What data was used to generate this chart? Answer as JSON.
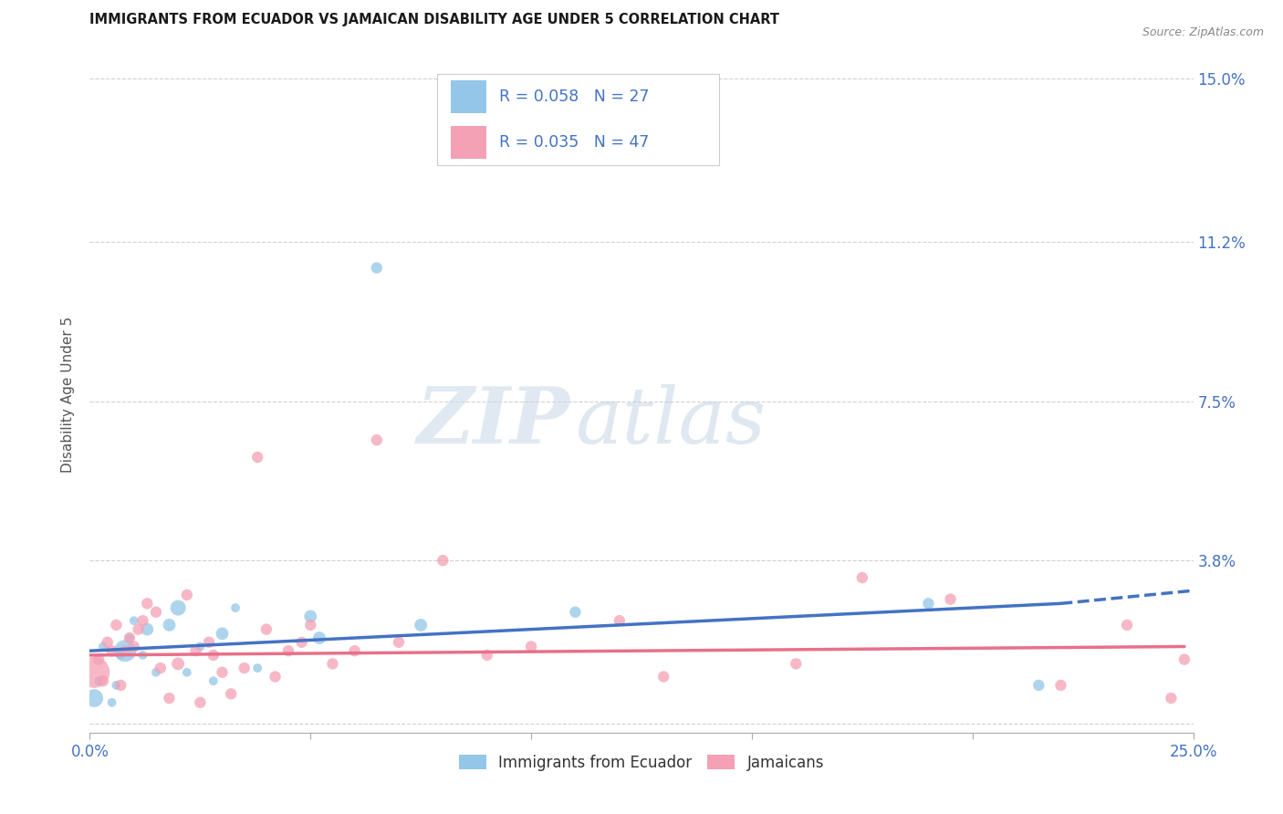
{
  "title": "IMMIGRANTS FROM ECUADOR VS JAMAICAN DISABILITY AGE UNDER 5 CORRELATION CHART",
  "source": "Source: ZipAtlas.com",
  "ylabel": "Disability Age Under 5",
  "xlim": [
    0.0,
    0.25
  ],
  "ylim": [
    -0.002,
    0.155
  ],
  "yticks": [
    0.0,
    0.038,
    0.075,
    0.112,
    0.15
  ],
  "ytick_labels": [
    "",
    "3.8%",
    "7.5%",
    "11.2%",
    "15.0%"
  ],
  "xticks": [
    0.0,
    0.05,
    0.1,
    0.15,
    0.2,
    0.25
  ],
  "xtick_labels": [
    "0.0%",
    "",
    "",
    "",
    "",
    "25.0%"
  ],
  "watermark_zip": "ZIP",
  "watermark_atlas": "atlas",
  "legend_ecuador": "R = 0.058   N = 27",
  "legend_jamaicans": "R = 0.035   N = 47",
  "legend_label_ecuador": "Immigrants from Ecuador",
  "legend_label_jamaicans": "Jamaicans",
  "color_ecuador": "#93C6E8",
  "color_jamaicans": "#F4A0B5",
  "trendline_ecuador_color": "#4472C4",
  "trendline_jamaicans_color": "#E8708A",
  "background_color": "#FFFFFF",
  "ecuador_x": [
    0.001,
    0.002,
    0.003,
    0.005,
    0.006,
    0.007,
    0.008,
    0.009,
    0.01,
    0.012,
    0.013,
    0.015,
    0.018,
    0.02,
    0.022,
    0.025,
    0.028,
    0.03,
    0.033,
    0.038,
    0.05,
    0.052,
    0.065,
    0.075,
    0.11,
    0.19,
    0.215
  ],
  "ecuador_y": [
    0.006,
    0.01,
    0.018,
    0.005,
    0.009,
    0.016,
    0.017,
    0.02,
    0.024,
    0.016,
    0.022,
    0.012,
    0.023,
    0.027,
    0.012,
    0.018,
    0.01,
    0.021,
    0.027,
    0.013,
    0.025,
    0.02,
    0.106,
    0.023,
    0.026,
    0.028,
    0.009
  ],
  "ecuador_sizes": [
    200,
    50,
    50,
    50,
    50,
    50,
    300,
    50,
    50,
    50,
    100,
    50,
    100,
    150,
    50,
    50,
    50,
    100,
    50,
    50,
    100,
    100,
    80,
    100,
    80,
    80,
    80
  ],
  "jamaicans_x": [
    0.001,
    0.002,
    0.003,
    0.004,
    0.005,
    0.006,
    0.007,
    0.008,
    0.009,
    0.01,
    0.011,
    0.012,
    0.013,
    0.015,
    0.016,
    0.018,
    0.02,
    0.022,
    0.024,
    0.025,
    0.027,
    0.028,
    0.03,
    0.032,
    0.035,
    0.038,
    0.04,
    0.042,
    0.045,
    0.048,
    0.05,
    0.055,
    0.06,
    0.065,
    0.07,
    0.08,
    0.09,
    0.1,
    0.12,
    0.13,
    0.16,
    0.175,
    0.195,
    0.22,
    0.235,
    0.245,
    0.248
  ],
  "jamaicans_y": [
    0.012,
    0.015,
    0.01,
    0.019,
    0.017,
    0.023,
    0.009,
    0.017,
    0.02,
    0.018,
    0.022,
    0.024,
    0.028,
    0.026,
    0.013,
    0.006,
    0.014,
    0.03,
    0.017,
    0.005,
    0.019,
    0.016,
    0.012,
    0.007,
    0.013,
    0.062,
    0.022,
    0.011,
    0.017,
    0.019,
    0.023,
    0.014,
    0.017,
    0.066,
    0.019,
    0.038,
    0.016,
    0.018,
    0.024,
    0.011,
    0.014,
    0.034,
    0.029,
    0.009,
    0.023,
    0.006,
    0.015
  ],
  "jamaicans_sizes": [
    600,
    80,
    80,
    80,
    80,
    80,
    80,
    80,
    80,
    80,
    80,
    80,
    80,
    80,
    80,
    80,
    100,
    80,
    80,
    80,
    80,
    80,
    80,
    80,
    80,
    80,
    80,
    80,
    80,
    80,
    80,
    80,
    80,
    80,
    80,
    80,
    80,
    80,
    80,
    80,
    80,
    80,
    80,
    80,
    80,
    80,
    80
  ],
  "trendline_ec_x0": 0.0,
  "trendline_ec_y0": 0.017,
  "trendline_ec_x1": 0.22,
  "trendline_ec_y1": 0.028,
  "trendline_ec_dash_x1": 0.25,
  "trendline_ec_dash_y1": 0.031,
  "trendline_jm_x0": 0.0,
  "trendline_jm_y0": 0.016,
  "trendline_jm_x1": 0.248,
  "trendline_jm_y1": 0.018
}
